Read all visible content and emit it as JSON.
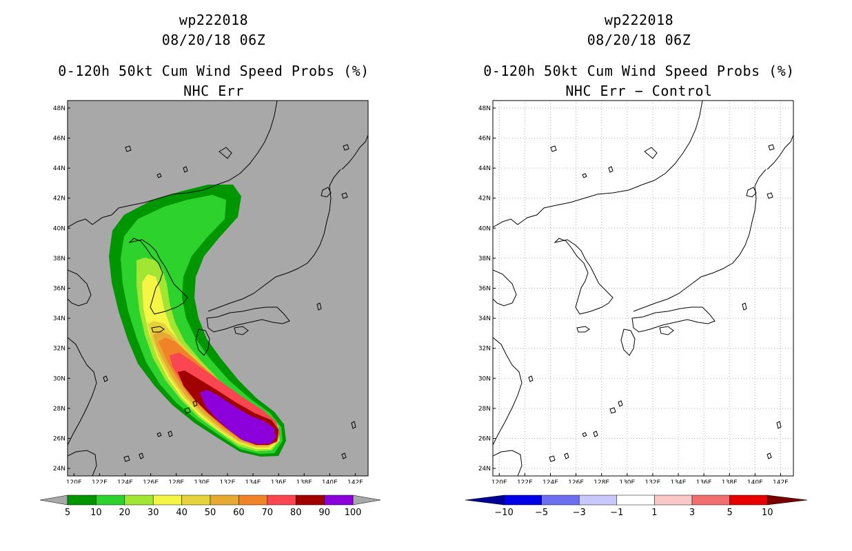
{
  "left": {
    "storm": "wp222018",
    "datetime": "08/20/18 06Z",
    "product": "0-120h 50kt Cum Wind Speed Probs (%)",
    "subtitle": "NHC Err",
    "map": {
      "lat_ticks": [
        "48N",
        "46N",
        "44N",
        "42N",
        "40N",
        "38N",
        "36N",
        "34N",
        "32N",
        "30N",
        "28N",
        "26N",
        "24N"
      ],
      "lon_ticks": [
        "120E",
        "122E",
        "124E",
        "126E",
        "128E",
        "130E",
        "132E",
        "134E",
        "136E",
        "138E",
        "140E",
        "142E"
      ],
      "lat_range": [
        23.5,
        48.5
      ],
      "lon_range": [
        119.5,
        143.0
      ],
      "background": "#a8a8a8",
      "grid": false
    },
    "colorbar": {
      "labels": [
        "5",
        "10",
        "20",
        "30",
        "40",
        "50",
        "60",
        "70",
        "80",
        "90",
        "100"
      ],
      "colors": [
        "#009600",
        "#2dd22d",
        "#a0e632",
        "#f5f545",
        "#e6d23c",
        "#e6aa32",
        "#f08228",
        "#fa4650",
        "#a00000",
        "#8c00dc"
      ],
      "end_arrow_color": "#a8a8a8"
    }
  },
  "right": {
    "storm": "wp222018",
    "datetime": "08/20/18 06Z",
    "product": "0-120h 50kt Cum Wind Speed Probs (%)",
    "subtitle": "NHC Err − Control",
    "map": {
      "lat_ticks": [
        "48N",
        "46N",
        "44N",
        "42N",
        "40N",
        "38N",
        "36N",
        "34N",
        "32N",
        "30N",
        "28N",
        "26N",
        "24N"
      ],
      "lon_ticks": [
        "120E",
        "122E",
        "124E",
        "126E",
        "128E",
        "130E",
        "132E",
        "134E",
        "136E",
        "138E",
        "140E",
        "142E"
      ],
      "lat_range": [
        23.5,
        48.5
      ],
      "lon_range": [
        119.5,
        143.0
      ],
      "background": "#ffffff",
      "grid": true
    },
    "colorbar": {
      "labels": [
        "−10",
        "−5",
        "−3",
        "−1",
        "1",
        "3",
        "5",
        "10"
      ],
      "colors": [
        "#0000e6",
        "#6e6ef0",
        "#c8c8fa",
        "#ffffff",
        "#fac8c8",
        "#f06e6e",
        "#e60000"
      ],
      "left_arrow_color": "#000096",
      "right_arrow_color": "#780000"
    }
  }
}
